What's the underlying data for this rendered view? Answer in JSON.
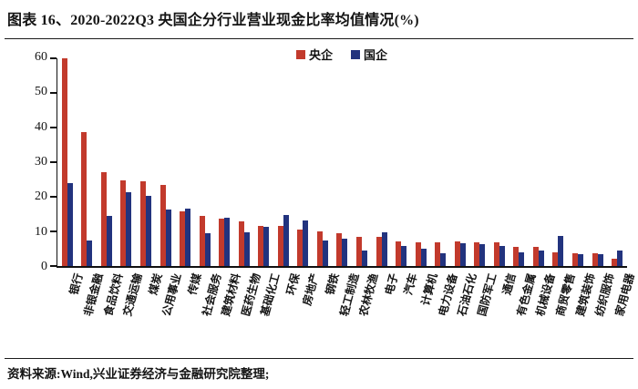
{
  "header": {
    "title": "图表 16、2020-2022Q3 央国企分行业营业现金比率均值情况(%)"
  },
  "footer": {
    "source": "资料来源:Wind,兴业证券经济与金融研究院整理;"
  },
  "chart_data": {
    "type": "bar",
    "title": "2020-2022Q3 央国企分行业营业现金比率均值情况(%)",
    "legend_position": "top",
    "grid": false,
    "ylim": [
      0,
      60
    ],
    "yticks": [
      0,
      10,
      20,
      30,
      40,
      50,
      60
    ],
    "categories": [
      "银行",
      "非银金融",
      "食品饮料",
      "交通运输",
      "煤炭",
      "公用事业",
      "传媒",
      "社会服务",
      "建筑材料",
      "医药生物",
      "基础化工",
      "环保",
      "房地产",
      "钢铁",
      "轻工制造",
      "农林牧渔",
      "电子",
      "汽车",
      "计算机",
      "电力设备",
      "石油石化",
      "国防军工",
      "通信",
      "有色金属",
      "机械设备",
      "商贸零售",
      "建筑装饰",
      "纺织服饰",
      "家用电器"
    ],
    "series": [
      {
        "name": "央企",
        "color": "#c23a2c",
        "values": [
          60,
          38.7,
          27.1,
          24.7,
          24.4,
          23.5,
          15.9,
          14.6,
          13.8,
          12.8,
          11.6,
          11.6,
          10.6,
          9.9,
          9.6,
          8.4,
          8.3,
          7.0,
          6.8,
          6.9,
          7.2,
          6.9,
          6.8,
          5.5,
          5.5,
          4.0,
          3.6,
          3.7,
          2.0
        ]
      },
      {
        "name": "国企",
        "color": "#22337e",
        "values": [
          24,
          7.4,
          14.5,
          21.4,
          20.3,
          16.3,
          16.6,
          9.5,
          14.0,
          9.8,
          11.2,
          14.7,
          13.2,
          7.3,
          8.0,
          4.6,
          9.8,
          5.9,
          5.1,
          3.7,
          6.5,
          6.3,
          5.7,
          4.0,
          4.6,
          8.7,
          3.3,
          3.5,
          4.4
        ]
      }
    ]
  }
}
